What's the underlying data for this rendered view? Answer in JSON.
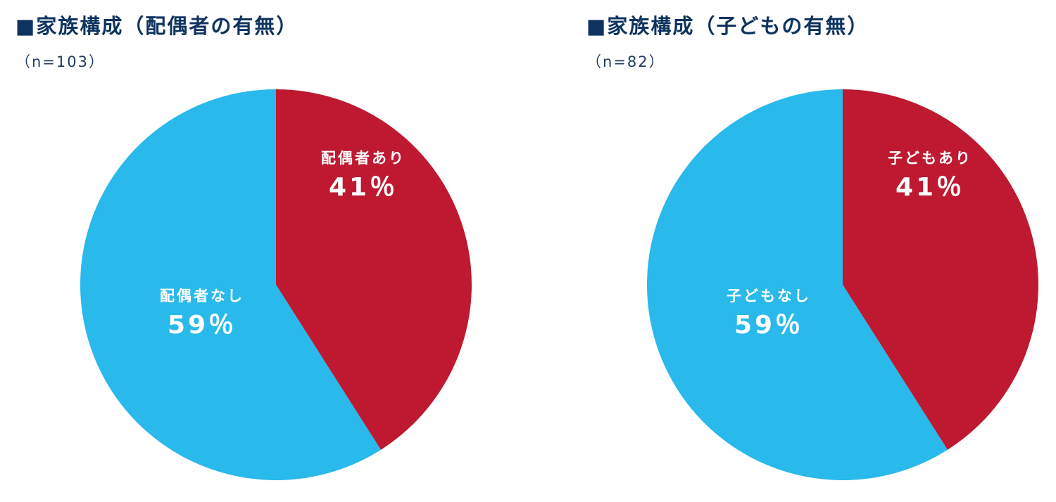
{
  "colors": {
    "yes": "#be1931",
    "no": "#29b9eb",
    "title": "#0f3360"
  },
  "chart_data": [
    {
      "type": "pie",
      "title": "■家族構成（配偶者の有無）",
      "subtitle": "（n=103）",
      "slices": [
        {
          "label": "配偶者あり",
          "value": 41,
          "value_label": "41％"
        },
        {
          "label": "配偶者なし",
          "value": 59,
          "value_label": "59％"
        }
      ]
    },
    {
      "type": "pie",
      "title": "■家族構成（子どもの有無）",
      "subtitle": "（n=82）",
      "slices": [
        {
          "label": "子どもあり",
          "value": 41,
          "value_label": "41％"
        },
        {
          "label": "子どもなし",
          "value": 59,
          "value_label": "59％"
        }
      ]
    }
  ]
}
